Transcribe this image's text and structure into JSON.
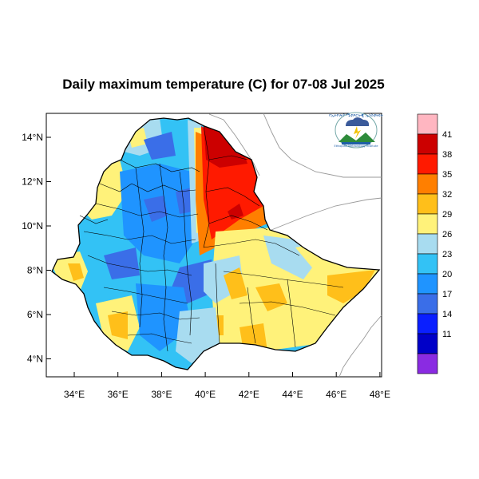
{
  "title": "Daily maximum temperature (C) for 07-08 Jul 2025",
  "logo": {
    "text_top": "የኢትዮጵያ ሜቲዎሮሎጂ ኢንስቲትዩት",
    "text_bottom": "Ethiopian Meteorology Institute"
  },
  "axes": {
    "x_ticks": [
      "34°E",
      "36°E",
      "38°E",
      "40°E",
      "42°E",
      "44°E",
      "46°E",
      "48°E"
    ],
    "y_ticks": [
      "14°N",
      "12°N",
      "10°N",
      "8°N",
      "6°N",
      "4°N"
    ]
  },
  "colorbar": {
    "labels": [
      "41",
      "38",
      "35",
      "32",
      "29",
      "26",
      "23",
      "20",
      "17",
      "14",
      "11"
    ],
    "colors": [
      "#ffb6c1",
      "#cc0000",
      "#ff1a00",
      "#ff7f00",
      "#ffbf1a",
      "#fff27a",
      "#a8dcf0",
      "#33c2f5",
      "#1f94ff",
      "#3a6ee8",
      "#0a1fff",
      "#0000c8",
      "#8a2be2"
    ]
  },
  "palette": {
    "lake": "#a8dcf0",
    "mid_blue": "#33c2f5",
    "blue": "#1f94ff",
    "deep_blue": "#3a6ee8",
    "light_blue": "#a8dcf0",
    "yellow": "#fff27a",
    "orange": "#ffbf1a",
    "dark_orange": "#ff7f00",
    "red": "#ff1a00",
    "dark_red": "#cc0000",
    "boundary": "#000000",
    "coast": "#888888"
  }
}
